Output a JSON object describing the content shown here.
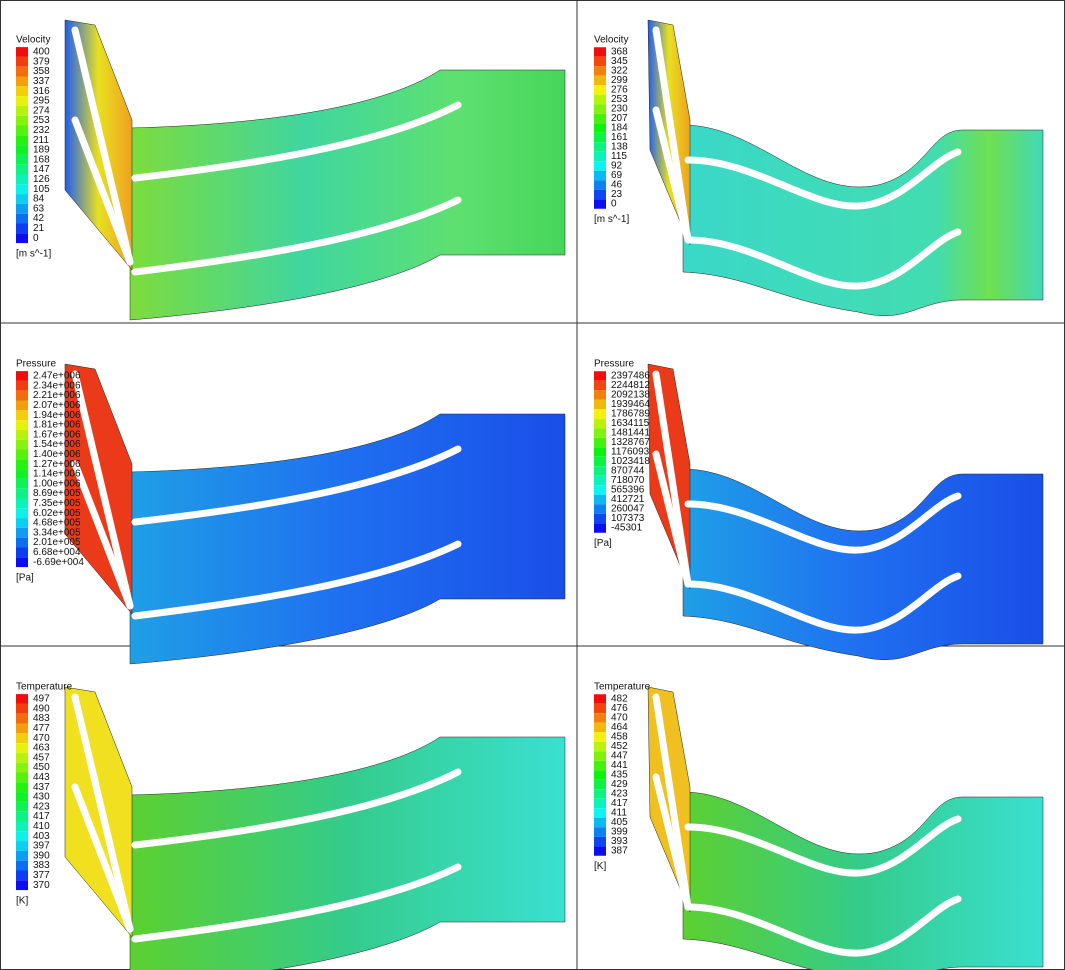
{
  "panels": [
    {
      "title": "Velocity",
      "unit": "[m s^-1]",
      "labels": [
        "400",
        "379",
        "358",
        "337",
        "316",
        "295",
        "274",
        "253",
        "232",
        "211",
        "189",
        "168",
        "147",
        "126",
        "105",
        "84",
        "63",
        "42",
        "21",
        "0"
      ]
    },
    {
      "title": "Velocity",
      "unit": "[m s^-1]",
      "labels": [
        "368",
        "345",
        "322",
        "299",
        "276",
        "253",
        "230",
        "207",
        "184",
        "161",
        "138",
        "115",
        "92",
        "69",
        "46",
        "23",
        "0"
      ]
    },
    {
      "title": "Pressure",
      "unit": "[Pa]",
      "labels": [
        "2.47e+006",
        "2.34e+006",
        "2.21e+006",
        "2.07e+006",
        "1.94e+006",
        "1.81e+006",
        "1.67e+006",
        "1.54e+006",
        "1.40e+006",
        "1.27e+006",
        "1.14e+006",
        "1.00e+006",
        "8.69e+005",
        "7.35e+005",
        "6.02e+005",
        "4.68e+005",
        "3.34e+005",
        "2.01e+005",
        "6.68e+004",
        "-6.69e+004"
      ]
    },
    {
      "title": "Pressure",
      "unit": "[Pa]",
      "labels": [
        "2397486",
        "2244812",
        "2092138",
        "1939464",
        "1786789",
        "1634115",
        "1481441",
        "1328767",
        "1176093",
        "1023418",
        "870744",
        "718070",
        "565396",
        "412721",
        "260047",
        "107373",
        "-45301"
      ]
    },
    {
      "title": "Temperature",
      "unit": "[K]",
      "labels": [
        "497",
        "490",
        "483",
        "477",
        "470",
        "463",
        "457",
        "450",
        "443",
        "437",
        "430",
        "423",
        "417",
        "410",
        "403",
        "397",
        "390",
        "383",
        "377",
        "370"
      ]
    },
    {
      "title": "Temperature",
      "unit": "[K]",
      "labels": [
        "482",
        "476",
        "470",
        "464",
        "458",
        "452",
        "447",
        "441",
        "435",
        "429",
        "423",
        "417",
        "411",
        "405",
        "399",
        "393",
        "387"
      ]
    }
  ]
}
